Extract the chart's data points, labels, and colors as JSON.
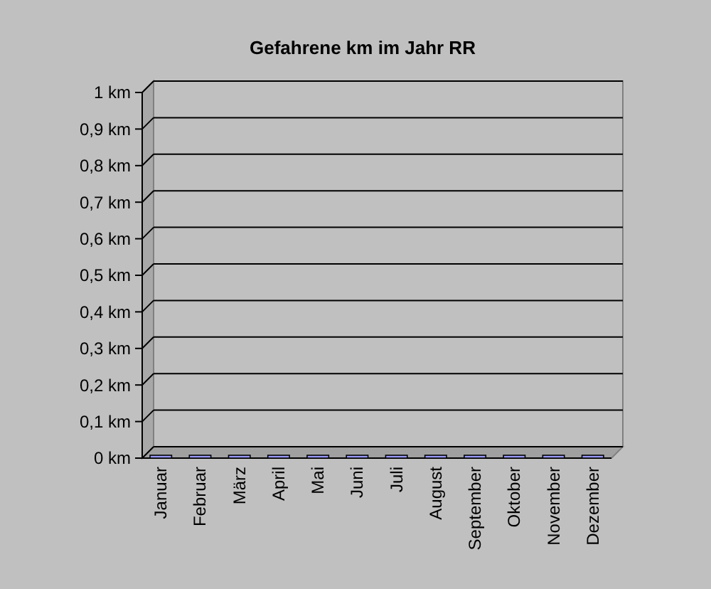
{
  "chart_data": {
    "type": "bar",
    "title": "Gefahrene km im Jahr RR",
    "categories": [
      "Januar",
      "Februar",
      "März",
      "April",
      "Mai",
      "Juni",
      "Juli",
      "August",
      "September",
      "Oktober",
      "November",
      "Dezember"
    ],
    "values": [
      0,
      0,
      0,
      0,
      0,
      0,
      0,
      0,
      0,
      0,
      0,
      0
    ],
    "color": "#9999ff",
    "ylim": [
      0,
      1
    ],
    "yticks": [
      {
        "value": 0,
        "label": "0 km"
      },
      {
        "value": 0.1,
        "label": "0,1 km"
      },
      {
        "value": 0.2,
        "label": "0,2 km"
      },
      {
        "value": 0.3,
        "label": "0,3 km"
      },
      {
        "value": 0.4,
        "label": "0,4 km"
      },
      {
        "value": 0.5,
        "label": "0,5 km"
      },
      {
        "value": 0.6,
        "label": "0,6 km"
      },
      {
        "value": 0.7,
        "label": "0,7 km"
      },
      {
        "value": 0.8,
        "label": "0,8 km"
      },
      {
        "value": 0.9,
        "label": "0,9 km"
      },
      {
        "value": 1,
        "label": "1 km"
      }
    ],
    "grid": "y"
  }
}
